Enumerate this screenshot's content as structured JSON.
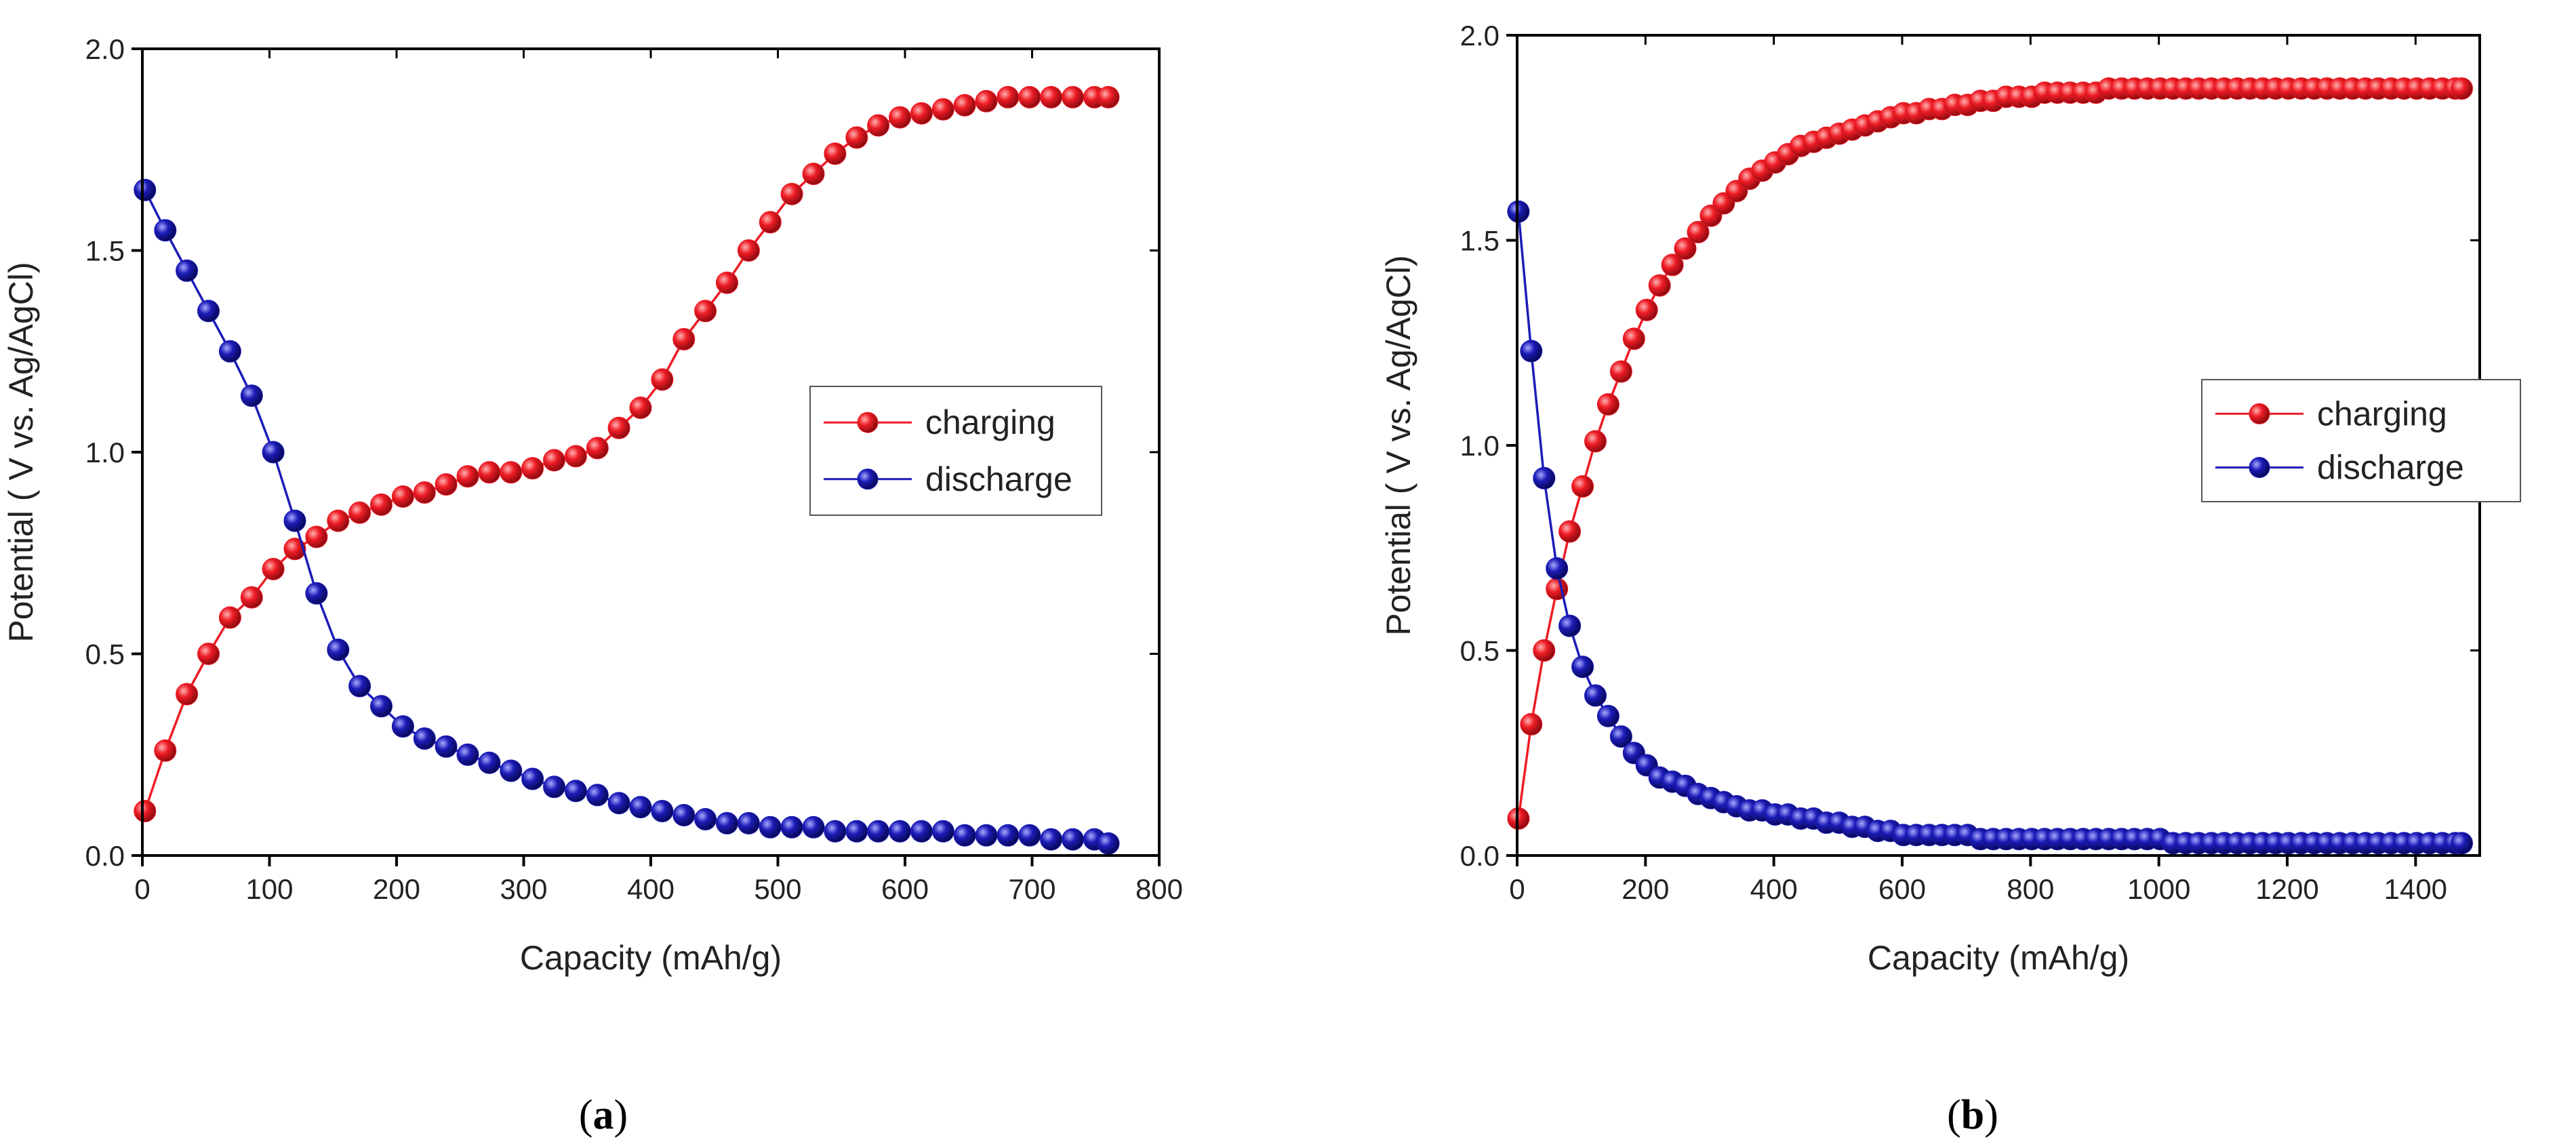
{
  "chart_data": [
    {
      "type": "line",
      "panel_label": "a",
      "xlabel": "Capacity (mAh/g)",
      "ylabel": "Potential ( V vs. Ag/AgCl)",
      "xlim": [
        0,
        800
      ],
      "ylim": [
        0,
        2.0
      ],
      "xticks": [
        0,
        100,
        200,
        300,
        400,
        500,
        600,
        700,
        800
      ],
      "xtick_labels": [
        "0",
        "100",
        "200",
        "300",
        "400",
        "500",
        "600",
        "700",
        "800"
      ],
      "yticks": [
        0,
        0.5,
        1.0,
        1.5,
        2.0
      ],
      "ytick_labels": [
        "0.0",
        "0.5",
        "1.0",
        "1.5",
        "2.0"
      ],
      "legend_position": "center-right",
      "series": [
        {
          "name": "charging",
          "color": "#ee1c25",
          "x": [
            2,
            18,
            35,
            52,
            69,
            86,
            103,
            120,
            137,
            154,
            171,
            188,
            205,
            222,
            239,
            256,
            273,
            290,
            307,
            324,
            341,
            358,
            375,
            392,
            409,
            426,
            443,
            460,
            477,
            494,
            511,
            528,
            545,
            562,
            579,
            596,
            613,
            630,
            647,
            664,
            681,
            698,
            715,
            732,
            749,
            760
          ],
          "y": [
            0.11,
            0.26,
            0.4,
            0.5,
            0.59,
            0.64,
            0.71,
            0.76,
            0.79,
            0.83,
            0.85,
            0.87,
            0.89,
            0.9,
            0.92,
            0.94,
            0.95,
            0.95,
            0.96,
            0.98,
            0.99,
            1.01,
            1.06,
            1.11,
            1.18,
            1.28,
            1.35,
            1.42,
            1.5,
            1.57,
            1.64,
            1.69,
            1.74,
            1.78,
            1.81,
            1.83,
            1.84,
            1.85,
            1.86,
            1.87,
            1.88,
            1.88,
            1.88,
            1.88,
            1.88,
            1.88
          ]
        },
        {
          "name": "discharge",
          "color": "#1c1cb8",
          "x": [
            2,
            18,
            35,
            52,
            69,
            86,
            103,
            120,
            137,
            154,
            171,
            188,
            205,
            222,
            239,
            256,
            273,
            290,
            307,
            324,
            341,
            358,
            375,
            392,
            409,
            426,
            443,
            460,
            477,
            494,
            511,
            528,
            545,
            562,
            579,
            596,
            613,
            630,
            647,
            664,
            681,
            698,
            715,
            732,
            749,
            760
          ],
          "y": [
            1.65,
            1.55,
            1.45,
            1.35,
            1.25,
            1.14,
            1.0,
            0.83,
            0.65,
            0.51,
            0.42,
            0.37,
            0.32,
            0.29,
            0.27,
            0.25,
            0.23,
            0.21,
            0.19,
            0.17,
            0.16,
            0.15,
            0.13,
            0.12,
            0.11,
            0.1,
            0.09,
            0.08,
            0.08,
            0.07,
            0.07,
            0.07,
            0.06,
            0.06,
            0.06,
            0.06,
            0.06,
            0.06,
            0.05,
            0.05,
            0.05,
            0.05,
            0.04,
            0.04,
            0.04,
            0.03
          ]
        }
      ]
    },
    {
      "type": "line",
      "panel_label": "b",
      "xlabel": "Capacity (mAh/g)",
      "ylabel": "Potential ( V vs. Ag/AgCl)",
      "xlim": [
        0,
        1500
      ],
      "ylim": [
        0,
        2.0
      ],
      "xticks": [
        0,
        200,
        400,
        600,
        800,
        1000,
        1200,
        1400
      ],
      "xtick_labels": [
        "0",
        "200",
        "400",
        "600",
        "800",
        "1000",
        "1200",
        "1400"
      ],
      "yticks": [
        0,
        0.5,
        1.0,
        1.5,
        2.0
      ],
      "ytick_labels": [
        "0.0",
        "0.5",
        "1.0",
        "1.5",
        "2.0"
      ],
      "legend_position": "center-right",
      "series": [
        {
          "name": "charging",
          "color": "#ee1c25",
          "x": [
            2,
            22,
            42,
            62,
            82,
            102,
            122,
            142,
            162,
            182,
            202,
            222,
            242,
            262,
            282,
            302,
            322,
            342,
            362,
            382,
            402,
            422,
            442,
            462,
            482,
            502,
            522,
            542,
            562,
            582,
            602,
            622,
            642,
            662,
            682,
            702,
            722,
            742,
            762,
            782,
            802,
            822,
            842,
            862,
            882,
            902,
            922,
            942,
            962,
            982,
            1002,
            1022,
            1042,
            1062,
            1082,
            1102,
            1122,
            1142,
            1162,
            1182,
            1202,
            1222,
            1242,
            1262,
            1282,
            1302,
            1322,
            1342,
            1362,
            1382,
            1402,
            1422,
            1442,
            1462,
            1472
          ],
          "y": [
            0.09,
            0.32,
            0.5,
            0.65,
            0.79,
            0.9,
            1.01,
            1.1,
            1.18,
            1.26,
            1.33,
            1.39,
            1.44,
            1.48,
            1.52,
            1.56,
            1.59,
            1.62,
            1.65,
            1.67,
            1.69,
            1.71,
            1.73,
            1.74,
            1.75,
            1.76,
            1.77,
            1.78,
            1.79,
            1.8,
            1.81,
            1.81,
            1.82,
            1.82,
            1.83,
            1.83,
            1.84,
            1.84,
            1.85,
            1.85,
            1.85,
            1.86,
            1.86,
            1.86,
            1.86,
            1.86,
            1.87,
            1.87,
            1.87,
            1.87,
            1.87,
            1.87,
            1.87,
            1.87,
            1.87,
            1.87,
            1.87,
            1.87,
            1.87,
            1.87,
            1.87,
            1.87,
            1.87,
            1.87,
            1.87,
            1.87,
            1.87,
            1.87,
            1.87,
            1.87,
            1.87,
            1.87,
            1.87,
            1.87,
            1.87
          ]
        },
        {
          "name": "discharge",
          "color": "#1c1cb8",
          "x": [
            2,
            22,
            42,
            62,
            82,
            102,
            122,
            142,
            162,
            182,
            202,
            222,
            242,
            262,
            282,
            302,
            322,
            342,
            362,
            382,
            402,
            422,
            442,
            462,
            482,
            502,
            522,
            542,
            562,
            582,
            602,
            622,
            642,
            662,
            682,
            702,
            722,
            742,
            762,
            782,
            802,
            822,
            842,
            862,
            882,
            902,
            922,
            942,
            962,
            982,
            1002,
            1022,
            1042,
            1062,
            1082,
            1102,
            1122,
            1142,
            1162,
            1182,
            1202,
            1222,
            1242,
            1262,
            1282,
            1302,
            1322,
            1342,
            1362,
            1382,
            1402,
            1422,
            1442,
            1462,
            1472
          ],
          "y": [
            1.57,
            1.23,
            0.92,
            0.7,
            0.56,
            0.46,
            0.39,
            0.34,
            0.29,
            0.25,
            0.22,
            0.19,
            0.18,
            0.17,
            0.15,
            0.14,
            0.13,
            0.12,
            0.11,
            0.11,
            0.1,
            0.1,
            0.09,
            0.09,
            0.08,
            0.08,
            0.07,
            0.07,
            0.06,
            0.06,
            0.05,
            0.05,
            0.05,
            0.05,
            0.05,
            0.05,
            0.04,
            0.04,
            0.04,
            0.04,
            0.04,
            0.04,
            0.04,
            0.04,
            0.04,
            0.04,
            0.04,
            0.04,
            0.04,
            0.04,
            0.04,
            0.03,
            0.03,
            0.03,
            0.03,
            0.03,
            0.03,
            0.03,
            0.03,
            0.03,
            0.03,
            0.03,
            0.03,
            0.03,
            0.03,
            0.03,
            0.03,
            0.03,
            0.03,
            0.03,
            0.03,
            0.03,
            0.03,
            0.03,
            0.03
          ]
        }
      ]
    }
  ]
}
